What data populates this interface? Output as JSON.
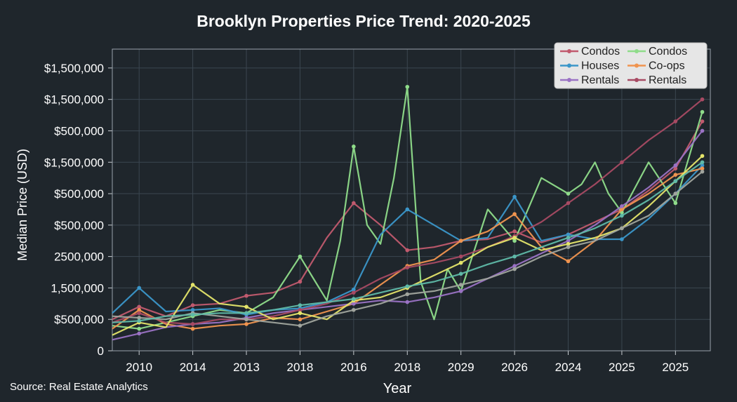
{
  "chart_data": {
    "type": "line",
    "title": "Brooklyn Properties Price Trend: 2020-2025",
    "xlabel": "Year",
    "ylabel": "Median Price (USD)",
    "source": "Source: Real Estate Analytics",
    "x_tick_labels": [
      "2010",
      "2014",
      "2013",
      "2018",
      "2016",
      "2018",
      "2029",
      "2026",
      "2024",
      "2025",
      "2025"
    ],
    "x_ticks": [
      1,
      3,
      5,
      7,
      9,
      11,
      13,
      15,
      17,
      19,
      21
    ],
    "xlim": [
      0,
      22.3
    ],
    "y_tick_labels": [
      "0",
      "$500,000",
      "1,500,000",
      "2500,000",
      "$500,000",
      "$500,000",
      "$1,500,000",
      "$500,000",
      "$1,500,000",
      "$1,500,000"
    ],
    "y_ticks": [
      0,
      1,
      2,
      3,
      4,
      5,
      6,
      7,
      8,
      9
    ],
    "ylim": [
      0,
      9.6
    ],
    "grid": true,
    "legend_position": "top-right",
    "series": [
      {
        "name": "Condos",
        "color": "#c15a6e",
        "x": [
          0,
          1,
          2,
          3,
          4,
          5,
          6,
          7,
          8,
          9,
          10,
          11,
          12,
          13,
          14,
          15,
          16,
          17,
          18,
          19,
          20,
          21,
          22
        ],
        "y": [
          1.0,
          1.4,
          1.1,
          1.45,
          1.5,
          1.75,
          1.85,
          2.2,
          3.6,
          4.7,
          4.0,
          3.2,
          3.3,
          3.5,
          3.55,
          3.8,
          3.45,
          3.7,
          4.1,
          4.5,
          5.1,
          5.8,
          7.3
        ]
      },
      {
        "name": "Condos",
        "color": "#8fdc8a",
        "x": [
          0,
          1,
          2,
          3,
          4,
          5,
          6,
          7,
          7.5,
          8,
          8.5,
          9,
          9.5,
          10,
          10.5,
          11,
          11.5,
          12,
          12.5,
          13,
          14,
          14.5,
          15,
          16,
          17,
          17.5,
          18,
          18.5,
          19,
          20,
          21,
          22
        ],
        "y": [
          0.8,
          0.7,
          0.9,
          1.1,
          1.3,
          1.2,
          1.7,
          3.0,
          2.3,
          1.6,
          3.5,
          6.5,
          4.0,
          3.4,
          5.5,
          8.4,
          2.2,
          1.0,
          2.6,
          1.9,
          4.5,
          4.0,
          3.5,
          5.5,
          5.0,
          5.3,
          6.0,
          5.0,
          4.4,
          6.0,
          4.7,
          7.6
        ]
      },
      {
        "name": "Houses",
        "color": "#3b96c9",
        "x": [
          0,
          1,
          2,
          3,
          4,
          5,
          6,
          7,
          8,
          9,
          10,
          11,
          12,
          13,
          14,
          15,
          16,
          17,
          18,
          19,
          20,
          21,
          22
        ],
        "y": [
          1.2,
          2.0,
          1.25,
          1.3,
          1.35,
          1.15,
          1.3,
          1.35,
          1.55,
          1.95,
          3.7,
          4.5,
          4.0,
          3.5,
          3.6,
          4.9,
          3.5,
          3.7,
          3.55,
          3.55,
          4.2,
          5.0,
          5.9
        ]
      },
      {
        "name": "Co-ops",
        "color": "#f0944f",
        "x": [
          0,
          1,
          2,
          3,
          4,
          5,
          6,
          7,
          8,
          9,
          10,
          11,
          12,
          13,
          14,
          15,
          16,
          17,
          18,
          19,
          20,
          21,
          22
        ],
        "y": [
          0.7,
          1.3,
          0.85,
          0.7,
          0.8,
          0.85,
          1.05,
          1.0,
          1.25,
          1.5,
          2.1,
          2.7,
          2.9,
          3.5,
          3.8,
          4.35,
          3.3,
          2.85,
          3.5,
          4.5,
          5.0,
          5.6,
          5.8
        ]
      },
      {
        "name": "Rentals",
        "color": "#9a72c4",
        "x": [
          0,
          1,
          2,
          3,
          4,
          5,
          6,
          7,
          8,
          9,
          10,
          11,
          12,
          13,
          14,
          15,
          16,
          17,
          18,
          19,
          20,
          21,
          22
        ],
        "y": [
          0.35,
          0.55,
          0.75,
          0.85,
          0.9,
          1.05,
          1.2,
          1.3,
          1.4,
          1.5,
          1.6,
          1.55,
          1.7,
          1.9,
          2.3,
          2.7,
          3.1,
          3.5,
          4.0,
          4.6,
          5.2,
          5.9,
          7.0
        ]
      },
      {
        "name": "Rentals",
        "color": "#a84a63",
        "x": [
          0,
          1,
          2,
          3,
          4,
          5,
          6,
          7,
          8,
          9,
          10,
          11,
          12,
          13,
          14,
          15,
          16,
          17,
          18,
          19,
          20,
          21,
          22
        ],
        "y": [
          0.9,
          1.2,
          0.9,
          0.85,
          1.0,
          1.0,
          1.1,
          1.3,
          1.5,
          1.85,
          2.3,
          2.65,
          2.8,
          3.0,
          3.3,
          3.65,
          4.1,
          4.7,
          5.3,
          6.0,
          6.7,
          7.3,
          8.0
        ]
      },
      {
        "name": "",
        "color": "#e4e46a",
        "x": [
          0,
          1,
          2,
          3,
          4,
          5,
          6,
          7,
          8,
          9,
          10,
          11,
          12,
          13,
          14,
          15,
          16,
          17,
          18,
          19,
          20,
          21,
          22
        ],
        "y": [
          0.5,
          0.9,
          0.75,
          2.1,
          1.5,
          1.4,
          1.0,
          1.2,
          1.0,
          1.6,
          1.7,
          2.0,
          2.4,
          2.8,
          3.3,
          3.6,
          3.2,
          3.4,
          3.6,
          3.9,
          4.6,
          5.4,
          6.2
        ]
      },
      {
        "name": "",
        "color": "#a0a49d",
        "x": [
          0,
          1,
          2,
          3,
          4,
          5,
          6,
          7,
          8,
          9,
          10,
          11,
          12,
          13,
          14,
          15,
          16,
          17,
          18,
          19,
          20,
          21,
          22
        ],
        "y": [
          1.1,
          1.05,
          1.0,
          1.2,
          1.1,
          1.0,
          0.9,
          0.8,
          1.1,
          1.3,
          1.5,
          1.8,
          1.9,
          2.1,
          2.3,
          2.6,
          3.0,
          3.3,
          3.5,
          3.9,
          4.3,
          5.0,
          5.7
        ]
      },
      {
        "name": "",
        "color": "#5fb9a8",
        "x": [
          0,
          1,
          2,
          3,
          4,
          5,
          6,
          7,
          8,
          9,
          10,
          11,
          12,
          13,
          14,
          15,
          16,
          17,
          18,
          19,
          20,
          21,
          22
        ],
        "y": [
          0.9,
          0.95,
          1.1,
          1.15,
          1.2,
          1.2,
          1.3,
          1.45,
          1.55,
          1.65,
          1.85,
          2.05,
          2.2,
          2.45,
          2.75,
          3.0,
          3.3,
          3.6,
          3.9,
          4.3,
          4.8,
          5.4,
          6.0
        ]
      }
    ],
    "legend": [
      {
        "label": "Condos",
        "color": "#c15a6e"
      },
      {
        "label": "Condos",
        "color": "#8fdc8a"
      },
      {
        "label": "Houses",
        "color": "#3b96c9"
      },
      {
        "label": "Co-ops",
        "color": "#f0944f"
      },
      {
        "label": "Rentals",
        "color": "#9a72c4"
      },
      {
        "label": "Rentals",
        "color": "#a84a63"
      }
    ],
    "colors": {
      "background": "#1f262c",
      "grid": "#3b4650",
      "text": "#ffffff",
      "legend_bg": "#e6e6e6"
    }
  }
}
